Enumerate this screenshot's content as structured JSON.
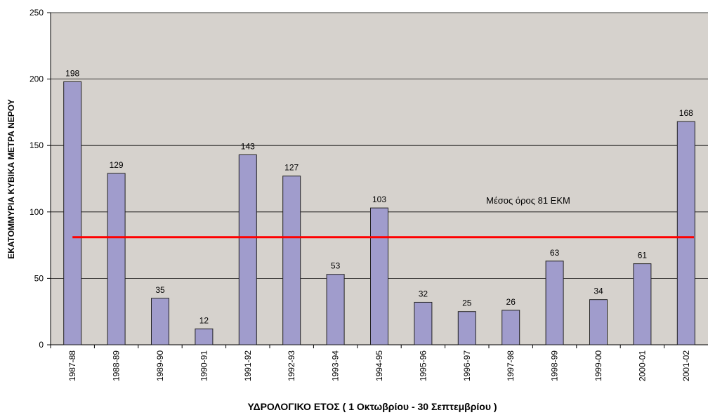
{
  "chart_data": {
    "type": "bar",
    "x_label": "ΥΔΡΟΛΟΓΙΚΟ ΕΤΟΣ ( 1 Οκτωβρίου - 30 Σεπτεμβρίου )",
    "y_label": "ΕΚΑΤΟΜΜΥΡΙΑ ΚΥΒΙΚΑ ΜΕΤΡΑ ΝΕΡΟΥ",
    "categories": [
      "1987-88",
      "1988-89",
      "1989-90",
      "1990-91",
      "1991-92",
      "1992-93",
      "1993-94",
      "1994-95",
      "1995-96",
      "1996-97",
      "1997-98",
      "1998-99",
      "1999-00",
      "2000-01",
      "2001-02"
    ],
    "values": [
      198,
      129,
      35,
      12,
      143,
      127,
      53,
      103,
      32,
      25,
      26,
      63,
      34,
      61,
      168
    ],
    "color": "#a09ccc",
    "ylim": [
      0,
      250
    ],
    "yticks": [
      0,
      50,
      100,
      150,
      200,
      250
    ],
    "grid": true,
    "reference_line": {
      "value": 81,
      "label": "Μέσος όρος 81 ΕΚΜ",
      "color": "#ff0000"
    }
  }
}
